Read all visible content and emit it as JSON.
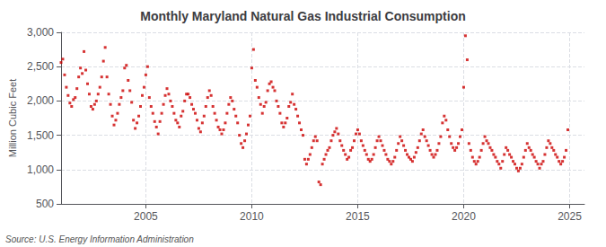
{
  "chart_data": {
    "type": "scatter",
    "title": "Monthly Maryland Natural Gas Industrial Consumption",
    "ylabel": "Million Cubic Feet",
    "source": "Source: U.S. Energy Information Administration",
    "color": "#cc0000",
    "marker": "square",
    "grid": true,
    "xlim": [
      2001.0,
      2025.7
    ],
    "xticks": [
      2005,
      2010,
      2015,
      2020,
      2025
    ],
    "ylim": [
      500,
      3000
    ],
    "yticks": [
      500,
      {
        "value": 1000,
        "label": "1,000"
      },
      {
        "value": 1500,
        "label": "1,500"
      },
      {
        "value": 2000,
        "label": "2,000"
      },
      {
        "value": 2500,
        "label": "2,500"
      },
      {
        "value": 3000,
        "label": "3,000"
      }
    ],
    "x": [
      2001.0,
      2001.083,
      2001.167,
      2001.25,
      2001.333,
      2001.417,
      2001.5,
      2001.583,
      2001.667,
      2001.75,
      2001.833,
      2001.917,
      2002.0,
      2002.083,
      2002.167,
      2002.25,
      2002.333,
      2002.417,
      2002.5,
      2002.583,
      2002.667,
      2002.75,
      2002.833,
      2002.917,
      2003.0,
      2003.083,
      2003.167,
      2003.25,
      2003.333,
      2003.417,
      2003.5,
      2003.583,
      2003.667,
      2003.75,
      2003.833,
      2003.917,
      2004.0,
      2004.083,
      2004.167,
      2004.25,
      2004.333,
      2004.417,
      2004.5,
      2004.583,
      2004.667,
      2004.75,
      2004.833,
      2004.917,
      2005.0,
      2005.083,
      2005.167,
      2005.25,
      2005.333,
      2005.417,
      2005.5,
      2005.583,
      2005.667,
      2005.75,
      2005.833,
      2005.917,
      2006.0,
      2006.083,
      2006.167,
      2006.25,
      2006.333,
      2006.417,
      2006.5,
      2006.583,
      2006.667,
      2006.75,
      2006.833,
      2006.917,
      2007.0,
      2007.083,
      2007.167,
      2007.25,
      2007.333,
      2007.417,
      2007.5,
      2007.583,
      2007.667,
      2007.75,
      2007.833,
      2007.917,
      2008.0,
      2008.083,
      2008.167,
      2008.25,
      2008.333,
      2008.417,
      2008.5,
      2008.583,
      2008.667,
      2008.75,
      2008.833,
      2008.917,
      2009.0,
      2009.083,
      2009.167,
      2009.25,
      2009.333,
      2009.417,
      2009.5,
      2009.583,
      2009.667,
      2009.75,
      2009.833,
      2009.917,
      2010.0,
      2010.083,
      2010.167,
      2010.25,
      2010.333,
      2010.417,
      2010.5,
      2010.583,
      2010.667,
      2010.75,
      2010.833,
      2010.917,
      2011.0,
      2011.083,
      2011.167,
      2011.25,
      2011.333,
      2011.417,
      2011.5,
      2011.583,
      2011.667,
      2011.75,
      2011.833,
      2011.917,
      2012.0,
      2012.083,
      2012.167,
      2012.25,
      2012.333,
      2012.417,
      2012.5,
      2012.583,
      2012.667,
      2012.75,
      2012.833,
      2012.917,
      2013.0,
      2013.083,
      2013.167,
      2013.25,
      2013.333,
      2013.417,
      2013.5,
      2013.583,
      2013.667,
      2013.75,
      2013.833,
      2013.917,
      2014.0,
      2014.083,
      2014.167,
      2014.25,
      2014.333,
      2014.417,
      2014.5,
      2014.583,
      2014.667,
      2014.75,
      2014.833,
      2014.917,
      2015.0,
      2015.083,
      2015.167,
      2015.25,
      2015.333,
      2015.417,
      2015.5,
      2015.583,
      2015.667,
      2015.75,
      2015.833,
      2015.917,
      2016.0,
      2016.083,
      2016.167,
      2016.25,
      2016.333,
      2016.417,
      2016.5,
      2016.583,
      2016.667,
      2016.75,
      2016.833,
      2016.917,
      2017.0,
      2017.083,
      2017.167,
      2017.25,
      2017.333,
      2017.417,
      2017.5,
      2017.583,
      2017.667,
      2017.75,
      2017.833,
      2017.917,
      2018.0,
      2018.083,
      2018.167,
      2018.25,
      2018.333,
      2018.417,
      2018.5,
      2018.583,
      2018.667,
      2018.75,
      2018.833,
      2018.917,
      2019.0,
      2019.083,
      2019.167,
      2019.25,
      2019.333,
      2019.417,
      2019.5,
      2019.583,
      2019.667,
      2019.75,
      2019.833,
      2019.917,
      2020.0,
      2020.083,
      2020.167,
      2020.25,
      2020.333,
      2020.417,
      2020.5,
      2020.583,
      2020.667,
      2020.75,
      2020.833,
      2020.917,
      2021.0,
      2021.083,
      2021.167,
      2021.25,
      2021.333,
      2021.417,
      2021.5,
      2021.583,
      2021.667,
      2021.75,
      2021.833,
      2021.917,
      2022.0,
      2022.083,
      2022.167,
      2022.25,
      2022.333,
      2022.417,
      2022.5,
      2022.583,
      2022.667,
      2022.75,
      2022.833,
      2022.917,
      2023.0,
      2023.083,
      2023.167,
      2023.25,
      2023.333,
      2023.417,
      2023.5,
      2023.583,
      2023.667,
      2023.75,
      2023.833,
      2023.917,
      2024.0,
      2024.083,
      2024.167,
      2024.25,
      2024.333,
      2024.417,
      2024.5,
      2024.583,
      2024.667,
      2024.75,
      2024.833,
      2024.917
    ],
    "values": [
      2560,
      2610,
      2380,
      2200,
      2080,
      1970,
      1920,
      2020,
      2050,
      2180,
      2350,
      2480,
      2400,
      2720,
      2450,
      2250,
      2100,
      1920,
      1880,
      1950,
      2000,
      2100,
      2200,
      2350,
      2580,
      2780,
      2350,
      2100,
      1950,
      1780,
      1650,
      1720,
      1820,
      1950,
      2050,
      2150,
      2480,
      2520,
      2300,
      2150,
      1980,
      1720,
      1600,
      1680,
      1780,
      1920,
      2080,
      2200,
      2380,
      2500,
      2050,
      1920,
      1820,
      1700,
      1620,
      1520,
      1700,
      1820,
      1950,
      2080,
      2180,
      2100,
      2000,
      1920,
      1820,
      1720,
      1680,
      1620,
      1780,
      1850,
      2000,
      2100,
      2100,
      2050,
      1950,
      1880,
      1820,
      1720,
      1600,
      1550,
      1680,
      1780,
      1920,
      2050,
      2150,
      2080,
      1920,
      1820,
      1720,
      1620,
      1580,
      1520,
      1580,
      1680,
      1820,
      1950,
      2050,
      2000,
      1880,
      1780,
      1680,
      1500,
      1380,
      1320,
      1420,
      1520,
      1650,
      1780,
      2480,
      2750,
      2300,
      2200,
      2050,
      1950,
      1820,
      1920,
      1980,
      2150,
      2250,
      2280,
      2200,
      2150,
      2000,
      1920,
      1820,
      1680,
      1620,
      1680,
      1750,
      1920,
      1980,
      2100,
      1950,
      1880,
      1780,
      1680,
      1580,
      1500,
      1150,
      1080,
      1150,
      1220,
      1320,
      1420,
      1480,
      1420,
      820,
      780,
      1080,
      1150,
      1220,
      1280,
      1320,
      1420,
      1500,
      1550,
      1600,
      1520,
      1420,
      1350,
      1280,
      1220,
      1150,
      1180,
      1280,
      1320,
      1420,
      1520,
      1580,
      1520,
      1420,
      1350,
      1280,
      1220,
      1150,
      1120,
      1150,
      1220,
      1320,
      1420,
      1480,
      1420,
      1350,
      1280,
      1220,
      1150,
      1120,
      1080,
      1120,
      1180,
      1280,
      1380,
      1480,
      1420,
      1350,
      1280,
      1220,
      1180,
      1150,
      1120,
      1180,
      1250,
      1320,
      1420,
      1520,
      1580,
      1480,
      1420,
      1350,
      1280,
      1220,
      1180,
      1220,
      1280,
      1380,
      1480,
      1680,
      1780,
      1720,
      1580,
      1480,
      1380,
      1320,
      1280,
      1320,
      1380,
      1480,
      1580,
      2200,
      2950,
      2600,
      1380,
      1280,
      1180,
      1120,
      1080,
      1120,
      1180,
      1280,
      1380,
      1480,
      1420,
      1380,
      1320,
      1280,
      1220,
      1180,
      1120,
      1080,
      1020,
      1120,
      1220,
      1320,
      1280,
      1220,
      1180,
      1120,
      1080,
      1020,
      980,
      1020,
      1080,
      1180,
      1280,
      1380,
      1320,
      1280,
      1220,
      1180,
      1120,
      1080,
      1020,
      1080,
      1120,
      1220,
      1320,
      1420,
      1380,
      1320,
      1280,
      1220,
      1180,
      1120,
      1080,
      1120,
      1180,
      1280,
      1580
    ]
  }
}
